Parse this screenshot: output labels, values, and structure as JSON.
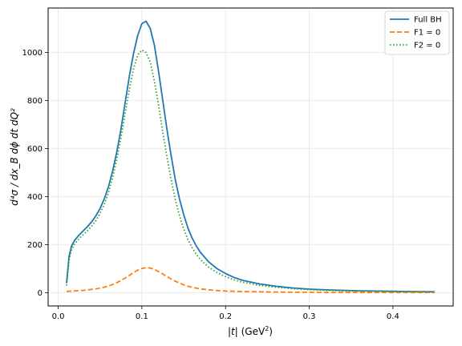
{
  "chart_data": {
    "type": "line",
    "xlabel_main": "|t|",
    "xlabel_unit_open": "(GeV",
    "xlabel_unit_sup": "2",
    "xlabel_unit_close": ")",
    "ylabel": "d⁴σ / dx_B dϕ dt dQ²",
    "xlim": [
      -0.012,
      0.472
    ],
    "ylim": [
      -55,
      1185
    ],
    "xticks": [
      0.0,
      0.1,
      0.2,
      0.3,
      0.4
    ],
    "xtick_labels": [
      "0.0",
      "0.1",
      "0.2",
      "0.3",
      "0.4"
    ],
    "yticks": [
      0,
      200,
      400,
      600,
      800,
      1000
    ],
    "ytick_labels": [
      "0",
      "200",
      "400",
      "600",
      "800",
      "1000"
    ],
    "grid": true,
    "legend_position": "top-right",
    "x": [
      0.01,
      0.013,
      0.016,
      0.02,
      0.025,
      0.03,
      0.035,
      0.04,
      0.045,
      0.05,
      0.055,
      0.06,
      0.065,
      0.07,
      0.075,
      0.08,
      0.085,
      0.09,
      0.095,
      0.1,
      0.105,
      0.11,
      0.115,
      0.12,
      0.125,
      0.13,
      0.135,
      0.14,
      0.145,
      0.15,
      0.155,
      0.16,
      0.165,
      0.17,
      0.18,
      0.19,
      0.2,
      0.21,
      0.22,
      0.24,
      0.26,
      0.28,
      0.3,
      0.32,
      0.34,
      0.36,
      0.38,
      0.4,
      0.42,
      0.45
    ],
    "series": [
      {
        "name": "Full BH",
        "color": "#1f77b4",
        "style": "solid",
        "values": [
          40,
          150,
          195,
          220,
          240,
          258,
          275,
          295,
          320,
          350,
          390,
          440,
          505,
          585,
          680,
          790,
          900,
          995,
          1070,
          1120,
          1130,
          1100,
          1030,
          920,
          800,
          680,
          570,
          470,
          390,
          325,
          270,
          228,
          195,
          168,
          128,
          100,
          80,
          64,
          52,
          37,
          27,
          20,
          15,
          12,
          10,
          8,
          7,
          6,
          5,
          4
        ]
      },
      {
        "name": "F1 = 0",
        "color": "#ff7f0e",
        "style": "dashed",
        "values": [
          5,
          6,
          7,
          8,
          9,
          10,
          12,
          14,
          16,
          19,
          23,
          28,
          34,
          42,
          51,
          61,
          72,
          84,
          94,
          101,
          104,
          103,
          97,
          88,
          78,
          67,
          57,
          48,
          40,
          33,
          27,
          23,
          19,
          16,
          12,
          9,
          7,
          6,
          5,
          4,
          3,
          2,
          2,
          1,
          1,
          1,
          1,
          1,
          1,
          1
        ]
      },
      {
        "name": "F2 = 0",
        "color": "#2ca02c",
        "style": "dotted",
        "values": [
          30,
          135,
          180,
          205,
          225,
          242,
          258,
          277,
          300,
          330,
          367,
          415,
          478,
          555,
          645,
          745,
          845,
          930,
          990,
          1010,
          1000,
          960,
          880,
          780,
          670,
          565,
          470,
          388,
          320,
          265,
          222,
          188,
          160,
          138,
          106,
          84,
          67,
          54,
          44,
          31,
          23,
          17,
          13,
          10,
          8,
          7,
          6,
          5,
          4,
          3
        ]
      }
    ]
  }
}
